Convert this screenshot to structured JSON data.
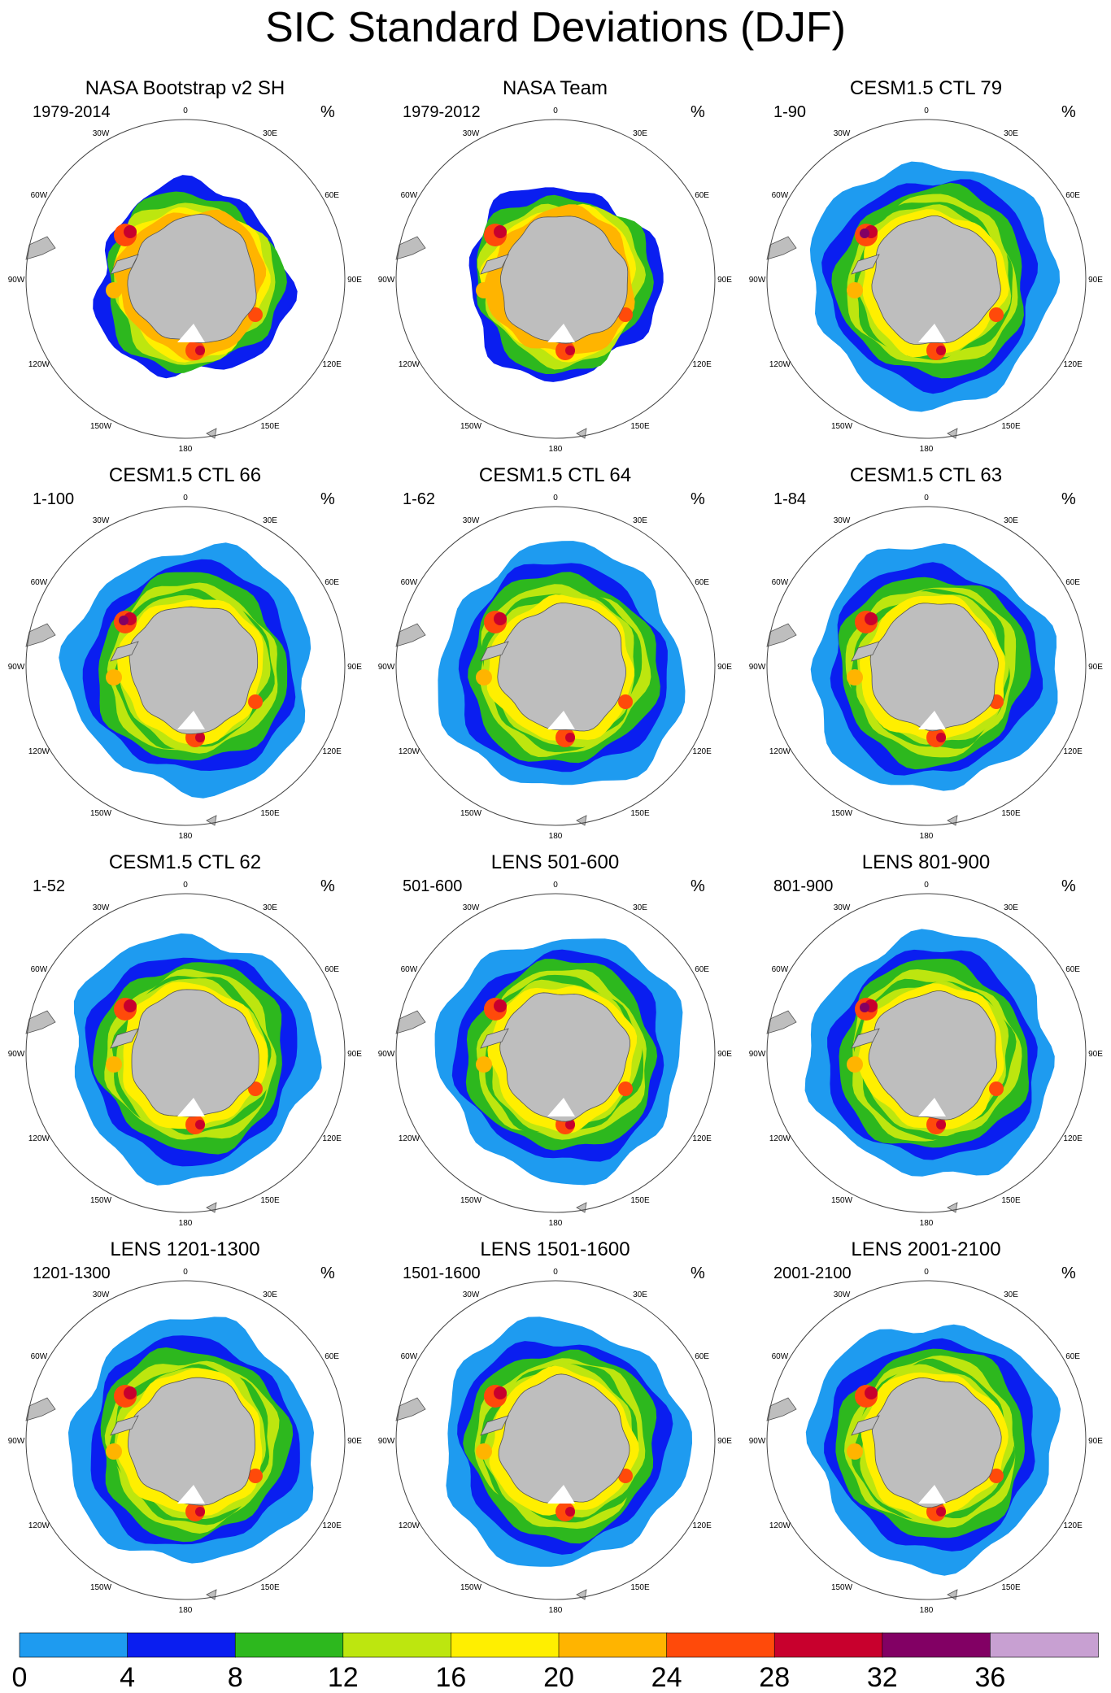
{
  "title": "SIC Standard Deviations (DJF)",
  "unit": "%",
  "longitude_labels": [
    "0",
    "30E",
    "60E",
    "90E",
    "120E",
    "150E",
    "180",
    "150W",
    "120W",
    "90W",
    "60W",
    "30W"
  ],
  "panels": [
    {
      "title": "NASA Bootstrap v2 SH",
      "period": "1979-2014",
      "ice_extent": "bootstrap"
    },
    {
      "title": "NASA Team",
      "period": "1979-2012",
      "ice_extent": "team"
    },
    {
      "title": "CESM1.5 CTL 79",
      "period": "1-90",
      "ice_extent": "model"
    },
    {
      "title": "CESM1.5 CTL 66",
      "period": "1-100",
      "ice_extent": "model"
    },
    {
      "title": "CESM1.5 CTL 64",
      "period": "1-62",
      "ice_extent": "model"
    },
    {
      "title": "CESM1.5 CTL 63",
      "period": "1-84",
      "ice_extent": "model"
    },
    {
      "title": "CESM1.5 CTL 62",
      "period": "1-52",
      "ice_extent": "model"
    },
    {
      "title": "LENS 501-600",
      "period": "501-600",
      "ice_extent": "model"
    },
    {
      "title": "LENS 801-900",
      "period": "801-900",
      "ice_extent": "model"
    },
    {
      "title": "LENS 1201-1300",
      "period": "1201-1300",
      "ice_extent": "model"
    },
    {
      "title": "LENS 1501-1600",
      "period": "1501-1600",
      "ice_extent": "model"
    },
    {
      "title": "LENS 2001-2100",
      "period": "2001-2100",
      "ice_extent": "model"
    }
  ],
  "chart_data": {
    "type": "heatmap",
    "projection": "south polar stereographic",
    "levels": [
      0,
      4,
      8,
      12,
      16,
      20,
      24,
      28,
      32,
      36
    ],
    "colors": [
      "#1e9bf0",
      "#0a1ef0",
      "#2db81e",
      "#bde60f",
      "#ffef00",
      "#ffb400",
      "#ff4a0a",
      "#c8002d",
      "#820064",
      "#c8a0d2"
    ],
    "colorbar_labels": [
      "0",
      "4",
      "8",
      "12",
      "16",
      "20",
      "24",
      "28",
      "32",
      "36"
    ],
    "land_color": "#bebebe",
    "grid": true
  }
}
